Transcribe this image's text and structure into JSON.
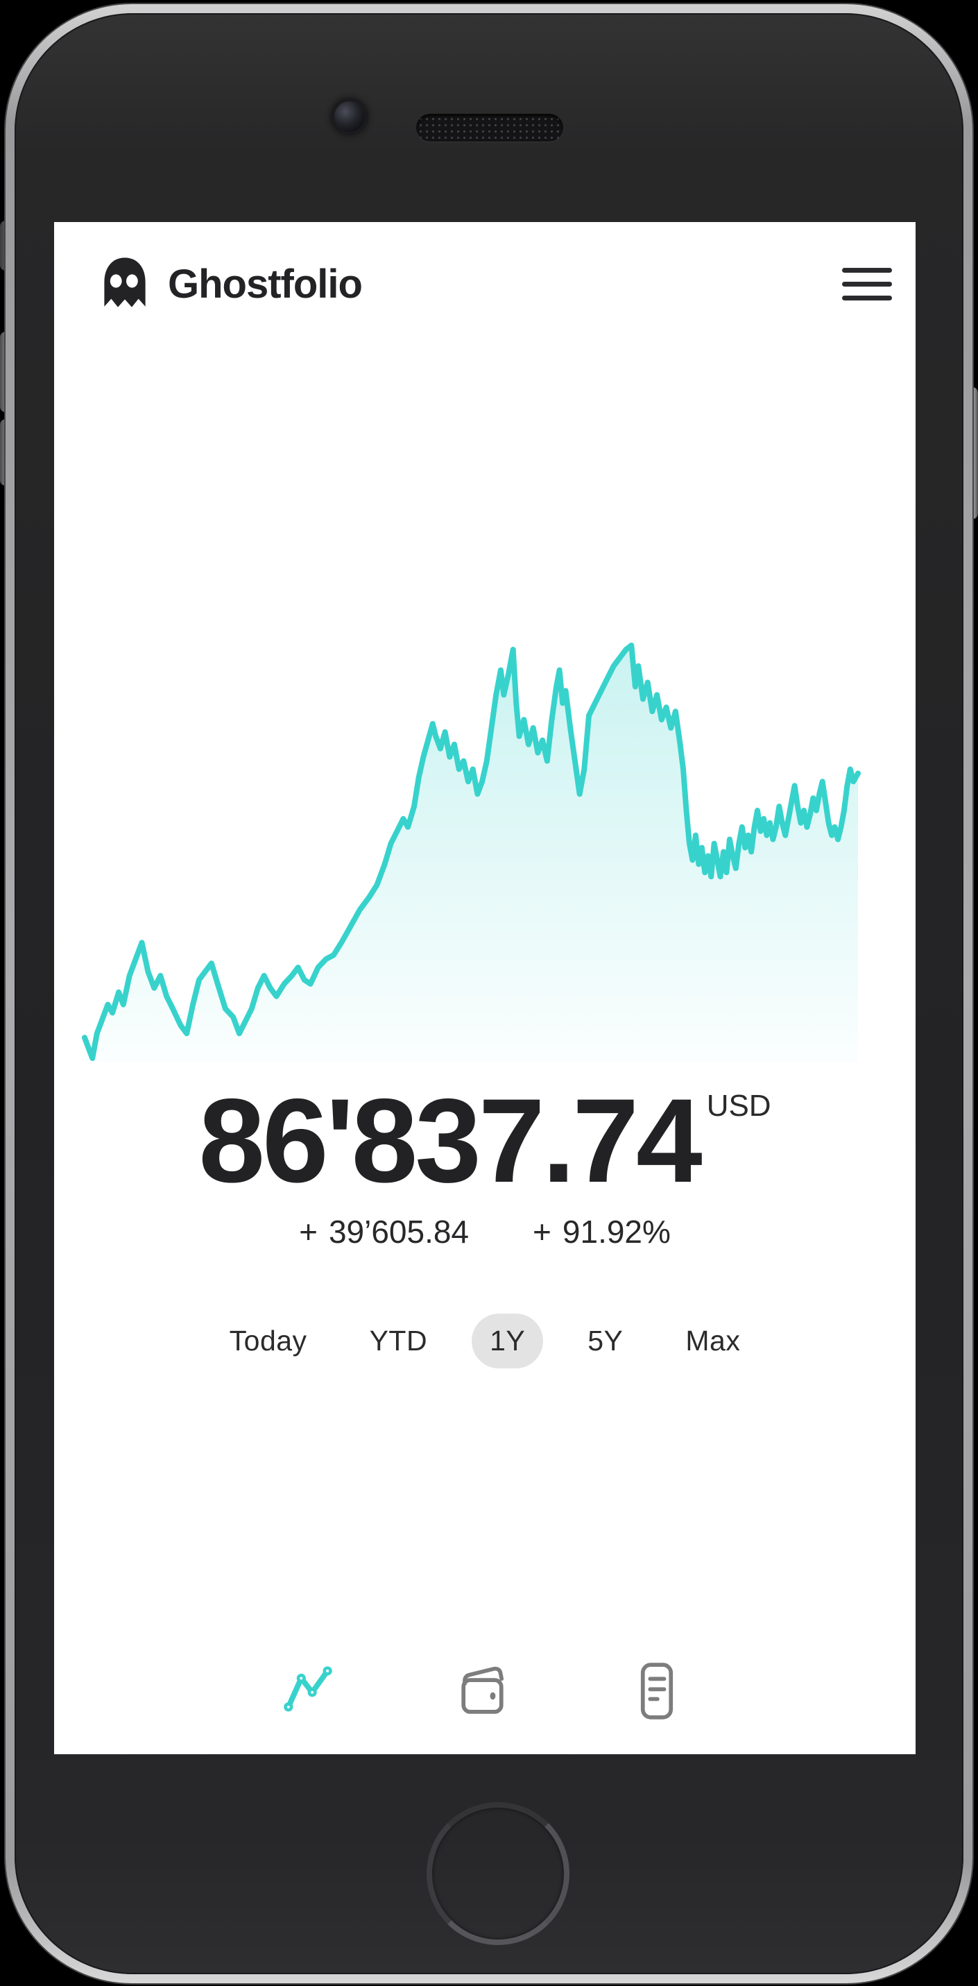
{
  "app": {
    "title": "Ghostfolio"
  },
  "portfolio": {
    "value": "86'837.74",
    "currency": "USD",
    "change_sign": "+",
    "change_absolute": "39’605.84",
    "change_percent": "91.92%"
  },
  "ranges": [
    {
      "label": "Today",
      "selected": false
    },
    {
      "label": "YTD",
      "selected": false
    },
    {
      "label": "1Y",
      "selected": true
    },
    {
      "label": "5Y",
      "selected": false
    },
    {
      "label": "Max",
      "selected": false
    }
  ],
  "nav_icons": [
    {
      "name": "line-chart",
      "active": true
    },
    {
      "name": "wallet",
      "active": false
    },
    {
      "name": "document-list",
      "active": false
    }
  ],
  "colors": {
    "accent_teal": "#38d2cc",
    "positive_green": "#2f9e44",
    "text_dark": "#232323",
    "inactive_icon_gray": "#7d7d7d",
    "pill_gray": "#e3e3e4"
  },
  "chart_data": {
    "type": "area",
    "title": "Portfolio performance (1Y)",
    "xlabel": "",
    "ylabel": "",
    "grid": false,
    "axes_hidden": true,
    "x_range": [
      0,
      100
    ],
    "y_range": [
      0,
      100
    ],
    "line_color": "#38d2cc",
    "fill": "vertical teal gradient fading to white",
    "series": [
      {
        "name": "portfolio-value",
        "points": [
          [
            0,
            5
          ],
          [
            0.6,
            2
          ],
          [
            1,
            0
          ],
          [
            1.6,
            6
          ],
          [
            2.2,
            9
          ],
          [
            3,
            13
          ],
          [
            3.6,
            11
          ],
          [
            4.4,
            16
          ],
          [
            5,
            13
          ],
          [
            5.8,
            20
          ],
          [
            6.6,
            24
          ],
          [
            7.4,
            28
          ],
          [
            8.2,
            21
          ],
          [
            9,
            17
          ],
          [
            9.8,
            20
          ],
          [
            10.6,
            15
          ],
          [
            11.4,
            12
          ],
          [
            12.4,
            8
          ],
          [
            13.2,
            6
          ],
          [
            14,
            13
          ],
          [
            14.8,
            19
          ],
          [
            15.6,
            21
          ],
          [
            16.4,
            23
          ],
          [
            17.2,
            18
          ],
          [
            18.2,
            12
          ],
          [
            19.2,
            10
          ],
          [
            20,
            6
          ],
          [
            20.8,
            9
          ],
          [
            21.6,
            12
          ],
          [
            22.4,
            17
          ],
          [
            23.2,
            20
          ],
          [
            24,
            17
          ],
          [
            24.8,
            15
          ],
          [
            25.8,
            18
          ],
          [
            26.8,
            20
          ],
          [
            27.6,
            22
          ],
          [
            28.4,
            19
          ],
          [
            29.2,
            18
          ],
          [
            30.2,
            22
          ],
          [
            31.2,
            24
          ],
          [
            32.2,
            25
          ],
          [
            33.2,
            28
          ],
          [
            34.4,
            32
          ],
          [
            35.6,
            36
          ],
          [
            36.8,
            39
          ],
          [
            37.8,
            42
          ],
          [
            38.8,
            47
          ],
          [
            39.6,
            52
          ],
          [
            40.4,
            55
          ],
          [
            41.2,
            58
          ],
          [
            41.8,
            56
          ],
          [
            42.6,
            61
          ],
          [
            43.2,
            68
          ],
          [
            43.8,
            73
          ],
          [
            44.4,
            77
          ],
          [
            45,
            81
          ],
          [
            45.4,
            78
          ],
          [
            46,
            75
          ],
          [
            46.6,
            79
          ],
          [
            47.2,
            73
          ],
          [
            47.8,
            76
          ],
          [
            48.4,
            70
          ],
          [
            49,
            72
          ],
          [
            49.6,
            67
          ],
          [
            50.2,
            70
          ],
          [
            50.8,
            64
          ],
          [
            51.4,
            67
          ],
          [
            52,
            72
          ],
          [
            52.6,
            80
          ],
          [
            53.2,
            88
          ],
          [
            53.8,
            94
          ],
          [
            54.2,
            88
          ],
          [
            54.8,
            93
          ],
          [
            55.4,
            99
          ],
          [
            55.8,
            86
          ],
          [
            56.2,
            78
          ],
          [
            56.8,
            82
          ],
          [
            57.4,
            76
          ],
          [
            58,
            80
          ],
          [
            58.6,
            74
          ],
          [
            59.2,
            77
          ],
          [
            59.8,
            72
          ],
          [
            60.4,
            82
          ],
          [
            61,
            90
          ],
          [
            61.4,
            94
          ],
          [
            61.8,
            86
          ],
          [
            62.2,
            89
          ],
          [
            62.8,
            80
          ],
          [
            63.4,
            72
          ],
          [
            64,
            64
          ],
          [
            64.6,
            70
          ],
          [
            65.2,
            83
          ],
          [
            66,
            86
          ],
          [
            66.8,
            89
          ],
          [
            67.6,
            92
          ],
          [
            68.4,
            95
          ],
          [
            69.2,
            97
          ],
          [
            70,
            99
          ],
          [
            70.7,
            100
          ],
          [
            71.2,
            90
          ],
          [
            71.6,
            95
          ],
          [
            72.2,
            87
          ],
          [
            72.8,
            91
          ],
          [
            73.4,
            84
          ],
          [
            74,
            88
          ],
          [
            74.6,
            82
          ],
          [
            75.2,
            85
          ],
          [
            75.8,
            80
          ],
          [
            76.4,
            84
          ],
          [
            77,
            76
          ],
          [
            77.4,
            70
          ],
          [
            77.8,
            60
          ],
          [
            78.2,
            52
          ],
          [
            78.6,
            48
          ],
          [
            79,
            54
          ],
          [
            79.4,
            47
          ],
          [
            79.8,
            51
          ],
          [
            80.2,
            45
          ],
          [
            80.6,
            49
          ],
          [
            81,
            44
          ],
          [
            81.4,
            52
          ],
          [
            81.8,
            48
          ],
          [
            82.2,
            44
          ],
          [
            82.6,
            50
          ],
          [
            83,
            45
          ],
          [
            83.4,
            53
          ],
          [
            83.8,
            49
          ],
          [
            84.2,
            46
          ],
          [
            84.6,
            52
          ],
          [
            85,
            56
          ],
          [
            85.4,
            51
          ],
          [
            85.8,
            54
          ],
          [
            86.2,
            50
          ],
          [
            86.6,
            56
          ],
          [
            87,
            60
          ],
          [
            87.4,
            55
          ],
          [
            87.8,
            58
          ],
          [
            88.2,
            54
          ],
          [
            88.6,
            57
          ],
          [
            89,
            53
          ],
          [
            89.4,
            56
          ],
          [
            89.8,
            61
          ],
          [
            90.2,
            57
          ],
          [
            90.6,
            54
          ],
          [
            91,
            58
          ],
          [
            91.4,
            62
          ],
          [
            91.8,
            66
          ],
          [
            92.2,
            61
          ],
          [
            92.6,
            57
          ],
          [
            93,
            60
          ],
          [
            93.4,
            56
          ],
          [
            93.8,
            59
          ],
          [
            94.2,
            63
          ],
          [
            94.6,
            60
          ],
          [
            95,
            64
          ],
          [
            95.4,
            67
          ],
          [
            95.8,
            62
          ],
          [
            96.2,
            57
          ],
          [
            96.6,
            54
          ],
          [
            97,
            56
          ],
          [
            97.4,
            53
          ],
          [
            97.8,
            56
          ],
          [
            98.2,
            60
          ],
          [
            98.6,
            66
          ],
          [
            99,
            70
          ],
          [
            99.4,
            67
          ],
          [
            100,
            69
          ]
        ]
      }
    ]
  }
}
